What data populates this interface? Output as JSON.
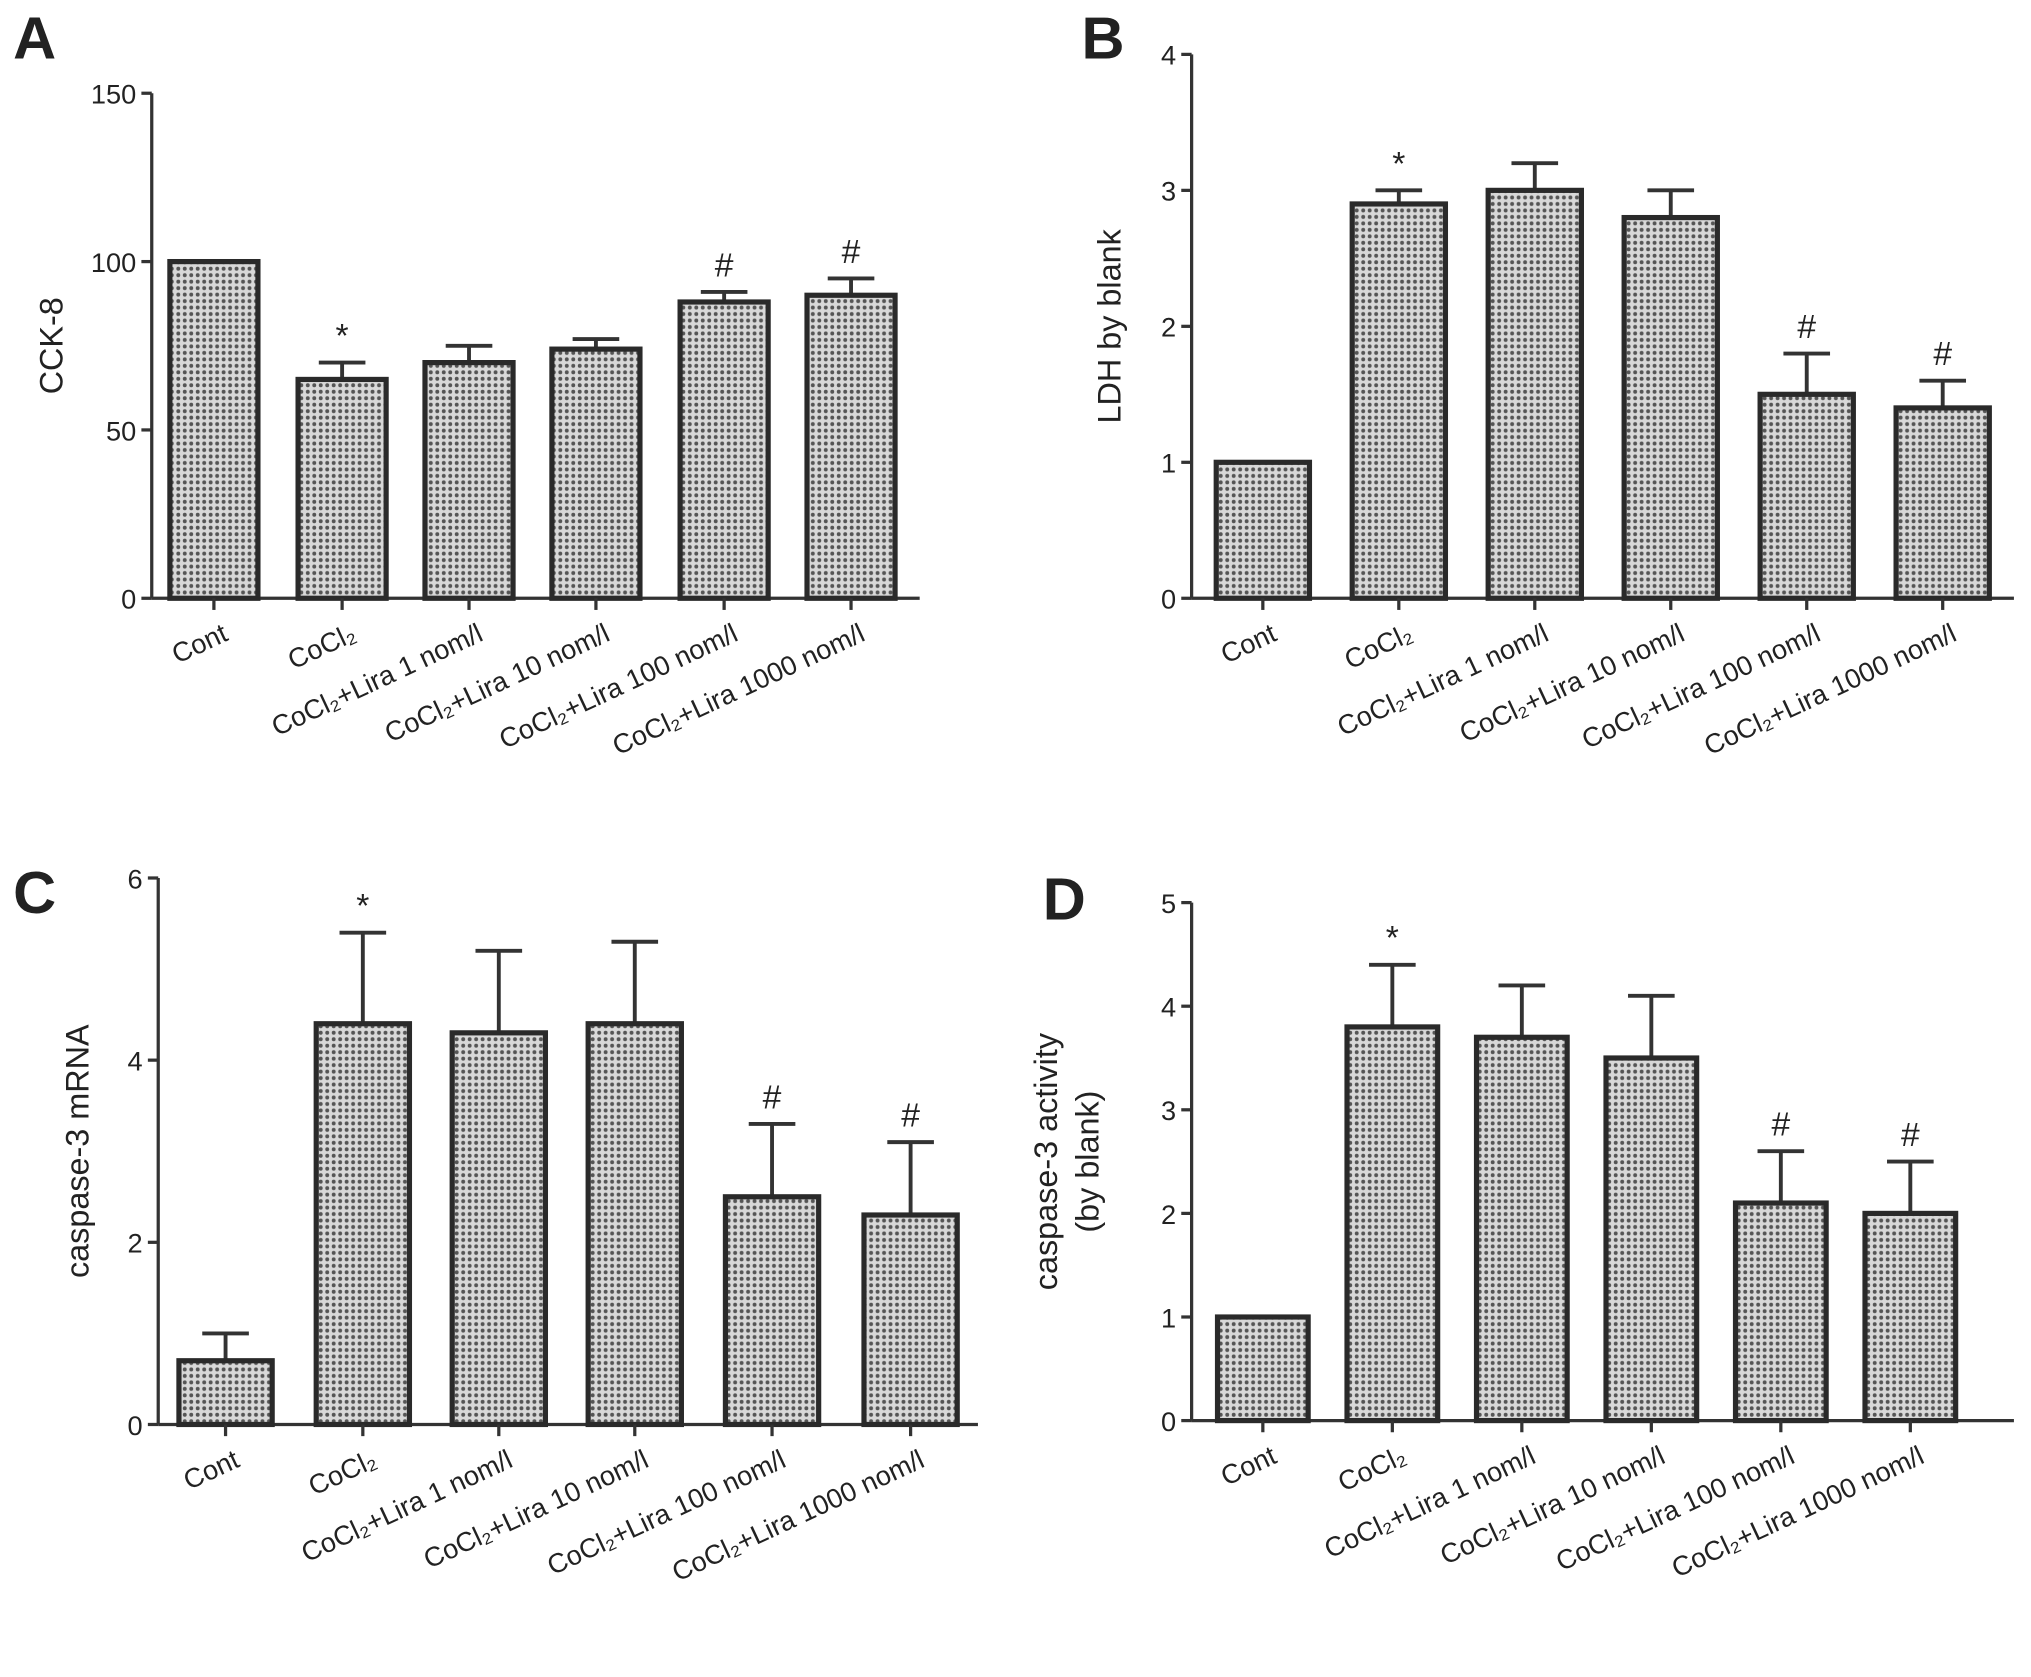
{
  "chart_data": [
    {
      "panel": "A",
      "type": "bar",
      "ylabel": [
        "CCK-8"
      ],
      "ylim": [
        0,
        150
      ],
      "yticks": [
        0,
        50,
        100,
        150
      ],
      "categories": [
        "Cont",
        "CoCl₂",
        "CoCl₂+Lira 1 nom/l",
        "CoCl₂+Lira 10 nom/l",
        "CoCl₂+Lira 100 nom/l",
        "CoCl₂+Lira 1000 nom/l"
      ],
      "values": [
        100,
        65,
        70,
        74,
        88,
        90
      ],
      "error_upper": [
        100,
        70,
        75,
        77,
        91,
        95
      ],
      "annotations": [
        "",
        "*",
        "",
        "",
        "#",
        "#"
      ]
    },
    {
      "panel": "B",
      "type": "bar",
      "ylabel": [
        "LDH by blank"
      ],
      "ylim": [
        0,
        4
      ],
      "yticks": [
        0,
        1,
        2,
        3,
        4
      ],
      "categories": [
        "Cont",
        "CoCl₂",
        "CoCl₂+Lira 1 nom/l",
        "CoCl₂+Lira 10 nom/l",
        "CoCl₂+Lira 100 nom/l",
        "CoCl₂+Lira 1000 nom/l"
      ],
      "values": [
        1.0,
        2.9,
        3.0,
        2.8,
        1.5,
        1.4
      ],
      "error_upper": [
        1.0,
        3.0,
        3.2,
        3.0,
        1.8,
        1.6
      ],
      "annotations": [
        "",
        "*",
        "",
        "",
        "#",
        "#"
      ]
    },
    {
      "panel": "C",
      "type": "bar",
      "ylabel": [
        "caspase-3 mRNA"
      ],
      "ylim": [
        0,
        6
      ],
      "yticks": [
        0,
        2,
        4,
        6
      ],
      "categories": [
        "Cont",
        "CoCl₂",
        "CoCl₂+Lira 1 nom/l",
        "CoCl₂+Lira 10 nom/l",
        "CoCl₂+Lira 100 nom/l",
        "CoCl₂+Lira 1000 nom/l"
      ],
      "values": [
        0.7,
        4.4,
        4.3,
        4.4,
        2.5,
        2.3
      ],
      "error_upper": [
        1.0,
        5.4,
        5.2,
        5.3,
        3.3,
        3.1
      ],
      "annotations": [
        "",
        "*",
        "",
        "",
        "#",
        "#"
      ]
    },
    {
      "panel": "D",
      "type": "bar",
      "ylabel": [
        "caspase-3 activity",
        "(by blank)"
      ],
      "ylim": [
        0,
        5
      ],
      "yticks": [
        0,
        1,
        2,
        3,
        4,
        5
      ],
      "categories": [
        "Cont",
        "CoCl₂",
        "CoCl₂+Lira 1 nom/l",
        "CoCl₂+Lira 10 nom/l",
        "CoCl₂+Lira 100 nom/l",
        "CoCl₂+Lira 1000 nom/l"
      ],
      "values": [
        1.0,
        3.8,
        3.7,
        3.5,
        2.1,
        2.0
      ],
      "error_upper": [
        1.0,
        4.4,
        4.2,
        4.1,
        2.6,
        2.5
      ],
      "annotations": [
        "",
        "*",
        "",
        "",
        "#",
        "#"
      ]
    }
  ]
}
